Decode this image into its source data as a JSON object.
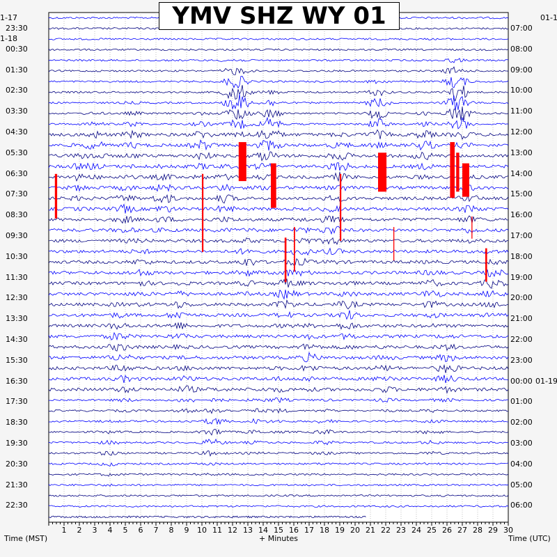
{
  "chart_data": {
    "type": "line",
    "title": "YMV SHZ WY 01",
    "xlabel": "+ Minutes",
    "ylabel_left": "Time (MST)",
    "ylabel_right": "Time (UTC)",
    "xlim": [
      0,
      30
    ],
    "x_ticks": [
      "1",
      "2",
      "3",
      "4",
      "5",
      "6",
      "7",
      "8",
      "9",
      "10",
      "11",
      "12",
      "13",
      "14",
      "15",
      "16",
      "17",
      "18",
      "19",
      "20",
      "21",
      "22",
      "23",
      "24",
      "25",
      "26",
      "27",
      "28",
      "29",
      "30"
    ],
    "date_labels": {
      "left_top": "1-17",
      "left_second": "1-18",
      "right_top": "01-1",
      "right_midnight": "01-19"
    },
    "left_time_labels": [
      "23:30",
      "00:30",
      "01:30",
      "02:30",
      "03:30",
      "04:30",
      "05:30",
      "06:30",
      "07:30",
      "08:30",
      "09:30",
      "10:30",
      "11:30",
      "12:30",
      "13:30",
      "14:30",
      "15:30",
      "16:30",
      "17:30",
      "18:30",
      "19:30",
      "20:30",
      "21:30",
      "22:30"
    ],
    "right_time_labels": [
      "07:00",
      "08:00",
      "09:00",
      "10:00",
      "11:00",
      "12:00",
      "13:00",
      "14:00",
      "15:00",
      "16:00",
      "17:00",
      "18:00",
      "19:00",
      "20:00",
      "21:00",
      "22:00",
      "23:00",
      "00:00",
      "01:00",
      "02:00",
      "03:00",
      "04:00",
      "05:00",
      "06:00"
    ],
    "trace_colors": [
      "#0000ff",
      "#000080",
      "#000000"
    ],
    "clip_color": "#ff0000",
    "grid": true
  }
}
